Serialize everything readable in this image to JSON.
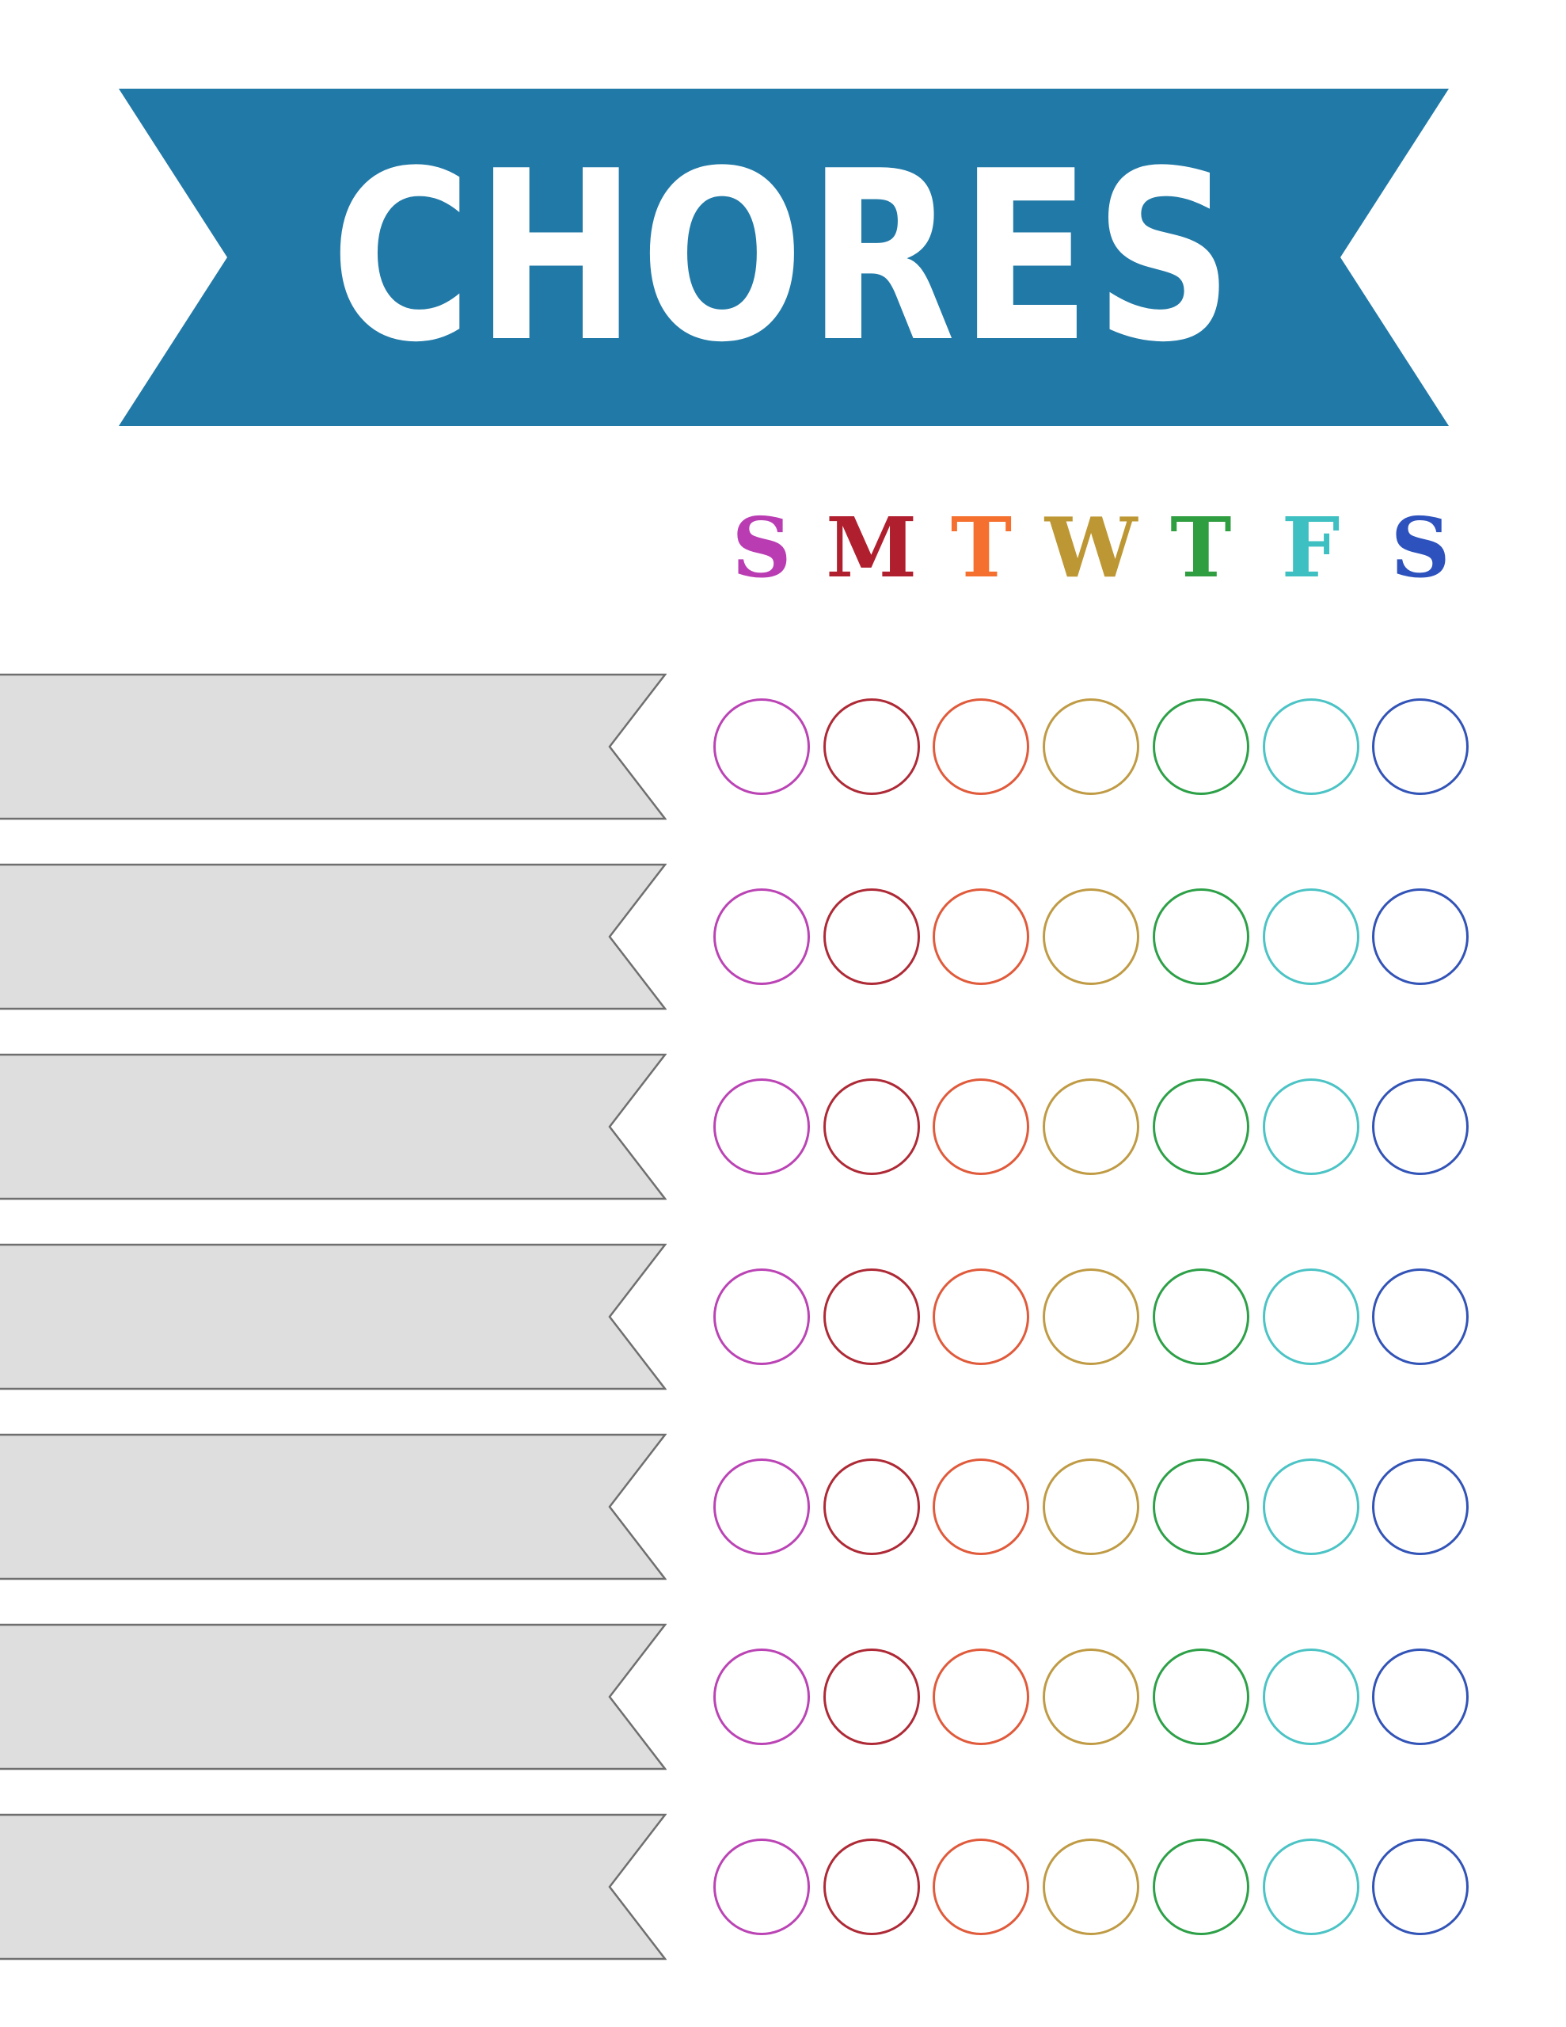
{
  "banner": {
    "label": "CHORES",
    "fill": "#2179a7",
    "text_color": "#ffffff"
  },
  "day_header": {
    "letters": [
      {
        "label": "S",
        "day": "sunday",
        "color": "#ba3cb3"
      },
      {
        "label": "M",
        "day": "monday",
        "color": "#b01f2e"
      },
      {
        "label": "T",
        "day": "tuesday",
        "color": "#f5702f"
      },
      {
        "label": "W",
        "day": "wednesday",
        "color": "#bd9733"
      },
      {
        "label": "T",
        "day": "thursday",
        "color": "#2f9e41"
      },
      {
        "label": "F",
        "day": "friday",
        "color": "#3ec0c2"
      },
      {
        "label": "S",
        "day": "saturday",
        "color": "#2d52bd"
      }
    ]
  },
  "chore_rows": {
    "ribbon_fill": "#dedede",
    "ribbon_border": "#6f6f6f",
    "circle_colors": [
      "#bb44b5",
      "#ae2a36",
      "#e05b3c",
      "#c09b45",
      "#2da048",
      "#4cc3c5",
      "#3354b7"
    ],
    "rows": [
      {
        "label": "",
        "marks": [
          "",
          "",
          "",
          "",
          "",
          "",
          ""
        ]
      },
      {
        "label": "",
        "marks": [
          "",
          "",
          "",
          "",
          "",
          "",
          ""
        ]
      },
      {
        "label": "",
        "marks": [
          "",
          "",
          "",
          "",
          "",
          "",
          ""
        ]
      },
      {
        "label": "",
        "marks": [
          "",
          "",
          "",
          "",
          "",
          "",
          ""
        ]
      },
      {
        "label": "",
        "marks": [
          "",
          "",
          "",
          "",
          "",
          "",
          ""
        ]
      },
      {
        "label": "",
        "marks": [
          "",
          "",
          "",
          "",
          "",
          "",
          ""
        ]
      },
      {
        "label": "",
        "marks": [
          "",
          "",
          "",
          "",
          "",
          "",
          ""
        ]
      }
    ]
  }
}
